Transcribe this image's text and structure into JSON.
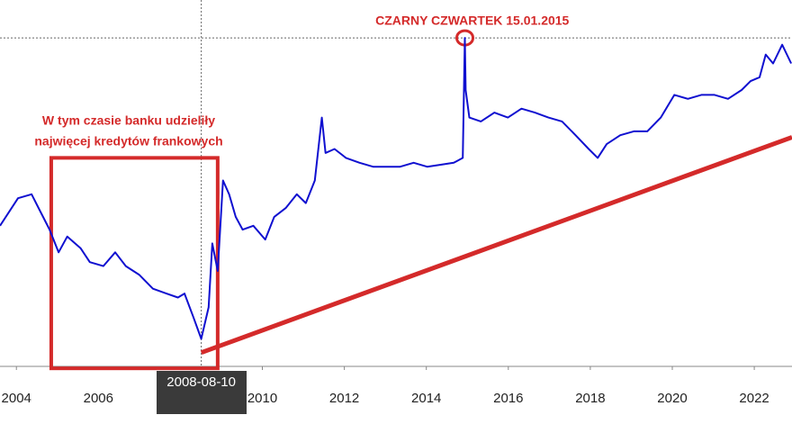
{
  "chart_data": {
    "type": "line",
    "color": "#1010d0",
    "x": [
      2003.6,
      2004.04,
      2004.37,
      2004.59,
      2004.81,
      2005.03,
      2005.24,
      2005.57,
      2005.79,
      2006.12,
      2006.41,
      2006.67,
      2007.0,
      2007.33,
      2007.66,
      2007.94,
      2008.1,
      2008.31,
      2008.51,
      2008.69,
      2008.78,
      2008.91,
      2009.04,
      2009.19,
      2009.35,
      2009.52,
      2009.78,
      2010.07,
      2010.29,
      2010.57,
      2010.84,
      2011.06,
      2011.28,
      2011.45,
      2011.54,
      2011.76,
      2012.04,
      2012.37,
      2012.7,
      2013.03,
      2013.36,
      2013.69,
      2014.02,
      2014.35,
      2014.67,
      2014.89,
      2014.94,
      2014.96,
      2015.05,
      2015.33,
      2015.66,
      2015.99,
      2016.32,
      2016.65,
      2016.98,
      2017.31,
      2017.64,
      2017.96,
      2018.18,
      2018.4,
      2018.73,
      2019.06,
      2019.39,
      2019.72,
      2020.05,
      2020.38,
      2020.71,
      2021.03,
      2021.36,
      2021.69,
      2021.91,
      2022.13,
      2022.28,
      2022.46,
      2022.68,
      2022.9
    ],
    "values": [
      3.09,
      3.37,
      3.41,
      3.23,
      3.05,
      2.82,
      2.98,
      2.86,
      2.72,
      2.68,
      2.82,
      2.68,
      2.59,
      2.45,
      2.4,
      2.36,
      2.4,
      2.17,
      1.94,
      2.26,
      2.91,
      2.63,
      3.55,
      3.41,
      3.18,
      3.05,
      3.09,
      2.95,
      3.18,
      3.27,
      3.41,
      3.32,
      3.55,
      4.19,
      3.83,
      3.87,
      3.78,
      3.73,
      3.69,
      3.69,
      3.69,
      3.73,
      3.69,
      3.71,
      3.73,
      3.78,
      5.0,
      4.47,
      4.19,
      4.15,
      4.24,
      4.19,
      4.28,
      4.24,
      4.19,
      4.15,
      4.01,
      3.87,
      3.78,
      3.92,
      4.01,
      4.05,
      4.05,
      4.19,
      4.42,
      4.38,
      4.42,
      4.42,
      4.38,
      4.47,
      4.56,
      4.6,
      4.83,
      4.74,
      4.93,
      4.74
    ],
    "xlim": [
      2003.6,
      2022.92
    ],
    "ylim": [
      1.66,
      5.385
    ],
    "xticks": [
      2004,
      2006,
      2008,
      2010,
      2012,
      2014,
      2016,
      2018,
      2020,
      2022
    ],
    "crosshair": {
      "x": 2008.51,
      "label": "2008-08-10"
    },
    "hline": 5.0,
    "annotations": [
      {
        "text": "CZARNY CZWARTEK 15.01.2015",
        "x": 2015.12,
        "y": 5.165
      },
      {
        "text": "W tym czasie banku udzieliły",
        "x": 2006.74,
        "y": 4.15
      },
      {
        "text": "najwięcej kredytów frankowych",
        "x": 2006.74,
        "y": 3.94
      }
    ],
    "annotation_color": "#d42a2a",
    "highlight_box": {
      "x": [
        2004.85,
        2008.91
      ],
      "y": [
        1.64,
        3.78
      ]
    },
    "trend": {
      "x": [
        2008.51,
        2022.92
      ],
      "y": [
        1.8,
        3.99
      ]
    },
    "marker": {
      "x": 2014.94,
      "y": 5.0
    }
  }
}
